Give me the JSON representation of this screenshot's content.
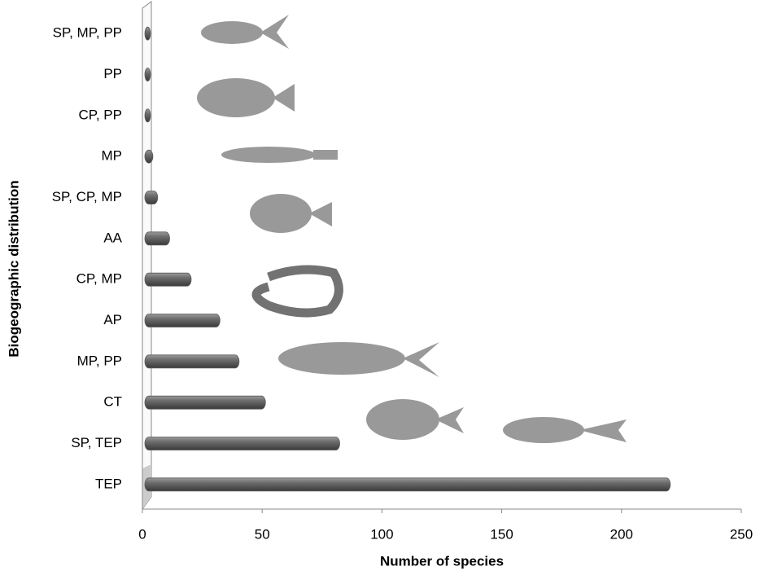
{
  "chart_data": {
    "type": "bar",
    "orientation": "horizontal",
    "x_label": "Number of species",
    "y_label": "Biogeographic distribution",
    "categories": [
      "SP, MP, PP",
      "PP",
      "CP, PP",
      "MP",
      "SP, CP, MP",
      "AA",
      "CP, MP",
      "AP",
      "MP, PP",
      "CT",
      "SP, TEP",
      "TEP"
    ],
    "values": [
      1,
      1,
      1,
      2,
      4,
      9,
      18,
      30,
      38,
      49,
      80,
      218
    ],
    "color": "#5a5a5a",
    "xlim": [
      0,
      250
    ],
    "xticks": [
      0,
      50,
      100,
      150,
      200,
      250
    ],
    "grid": false
  }
}
